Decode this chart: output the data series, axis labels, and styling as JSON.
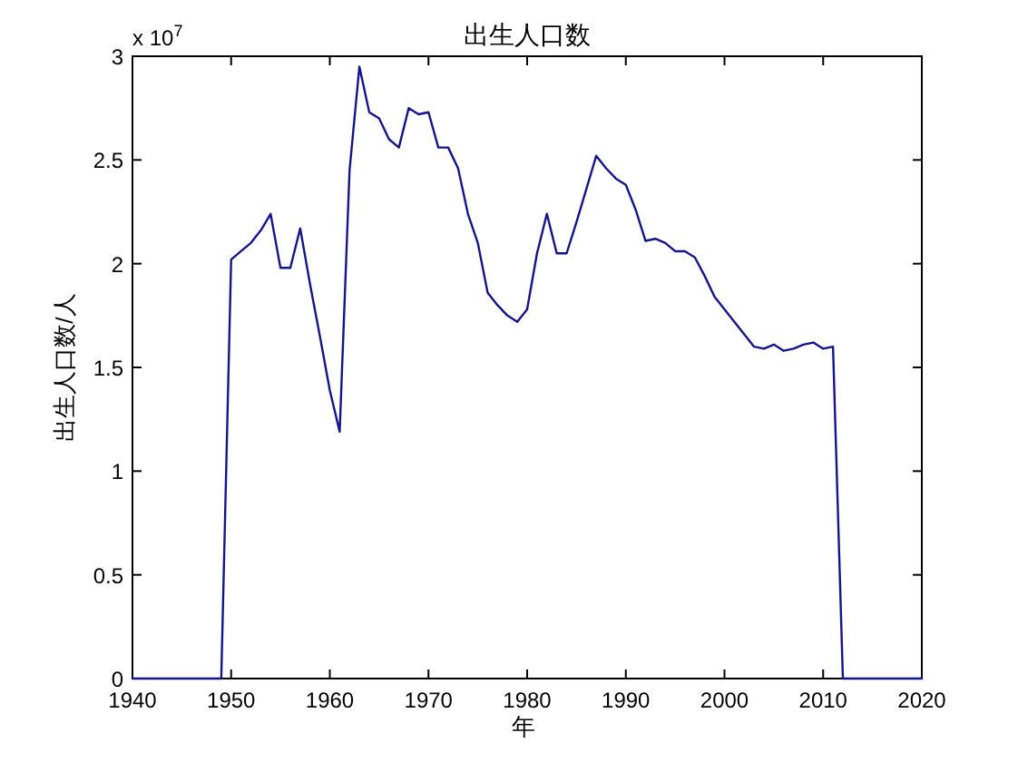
{
  "chart_data": {
    "type": "line",
    "title": "出生人口数",
    "xlabel": "年",
    "ylabel": "出生人口数/人",
    "annotations": [
      "x 10$^{7}$"
    ],
    "x": [
      1940,
      1941,
      1942,
      1943,
      1944,
      1945,
      1946,
      1947,
      1948,
      1949,
      1950,
      1951,
      1952,
      1953,
      1954,
      1955,
      1956,
      1957,
      1958,
      1959,
      1960,
      1961,
      1962,
      1963,
      1964,
      1965,
      1966,
      1967,
      1968,
      1969,
      1970,
      1971,
      1972,
      1973,
      1974,
      1975,
      1976,
      1977,
      1978,
      1979,
      1980,
      1981,
      1982,
      1983,
      1984,
      1985,
      1986,
      1987,
      1988,
      1989,
      1990,
      1991,
      1992,
      1993,
      1994,
      1995,
      1996,
      1997,
      1998,
      1999,
      2000,
      2001,
      2002,
      2003,
      2004,
      2005,
      2006,
      2007,
      2008,
      2009,
      2010,
      2011,
      2012,
      2013,
      2014,
      2015,
      2016,
      2017,
      2018,
      2019,
      2020
    ],
    "values": [
      0,
      0,
      0,
      0,
      0,
      0,
      0,
      0,
      0,
      0,
      2.02,
      2.06,
      2.1,
      2.16,
      2.24,
      1.98,
      1.98,
      2.17,
      1.9,
      1.65,
      1.39,
      1.19,
      2.45,
      2.95,
      2.73,
      2.7,
      2.6,
      2.56,
      2.75,
      2.72,
      2.73,
      2.56,
      2.56,
      2.46,
      2.24,
      2.1,
      1.86,
      1.8,
      1.75,
      1.72,
      1.78,
      2.05,
      2.24,
      2.05,
      2.05,
      2.2,
      2.36,
      2.52,
      2.46,
      2.41,
      2.38,
      2.26,
      2.11,
      2.12,
      2.1,
      2.06,
      2.06,
      2.03,
      1.94,
      1.84,
      1.78,
      1.72,
      1.66,
      1.6,
      1.59,
      1.61,
      1.58,
      1.59,
      1.61,
      1.62,
      1.59,
      1.6,
      0,
      0,
      0,
      0,
      0,
      0,
      0,
      0,
      0
    ],
    "color": "#14148c",
    "xlim": [
      1940,
      2020
    ],
    "ylim": [
      0,
      3
    ],
    "xticks": [
      1940,
      1950,
      1960,
      1970,
      1980,
      1990,
      2000,
      2010,
      2020
    ],
    "yticks": [
      0,
      0.5,
      1,
      1.5,
      2,
      2.5,
      3
    ]
  }
}
